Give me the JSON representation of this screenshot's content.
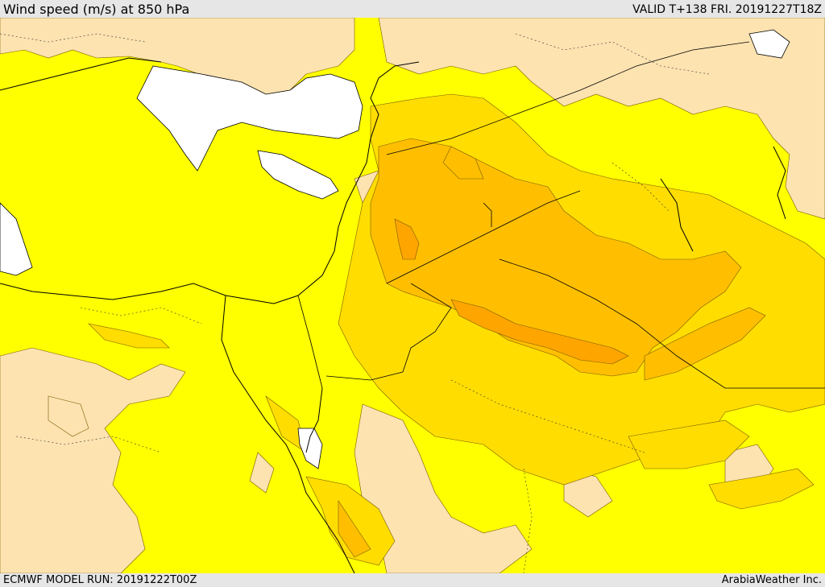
{
  "header": {
    "title": "Wind speed (m/s) at 850 hPa",
    "valid": "VALID T+138 FRI. 20191227T18Z"
  },
  "footer": {
    "model_run": "ECMWF MODEL RUN: 20191222T00Z",
    "credit": "ArabiaWeather Inc."
  },
  "colors": {
    "band_low": "#fde3b0",
    "band_mid": "#ffff00",
    "band_high": "#ffdd00",
    "band_higher": "#ffbf00",
    "band_highest": "#ffa500",
    "sea_masked": "#ffffff",
    "contour": "#7a5a00",
    "coast": "#000000"
  }
}
